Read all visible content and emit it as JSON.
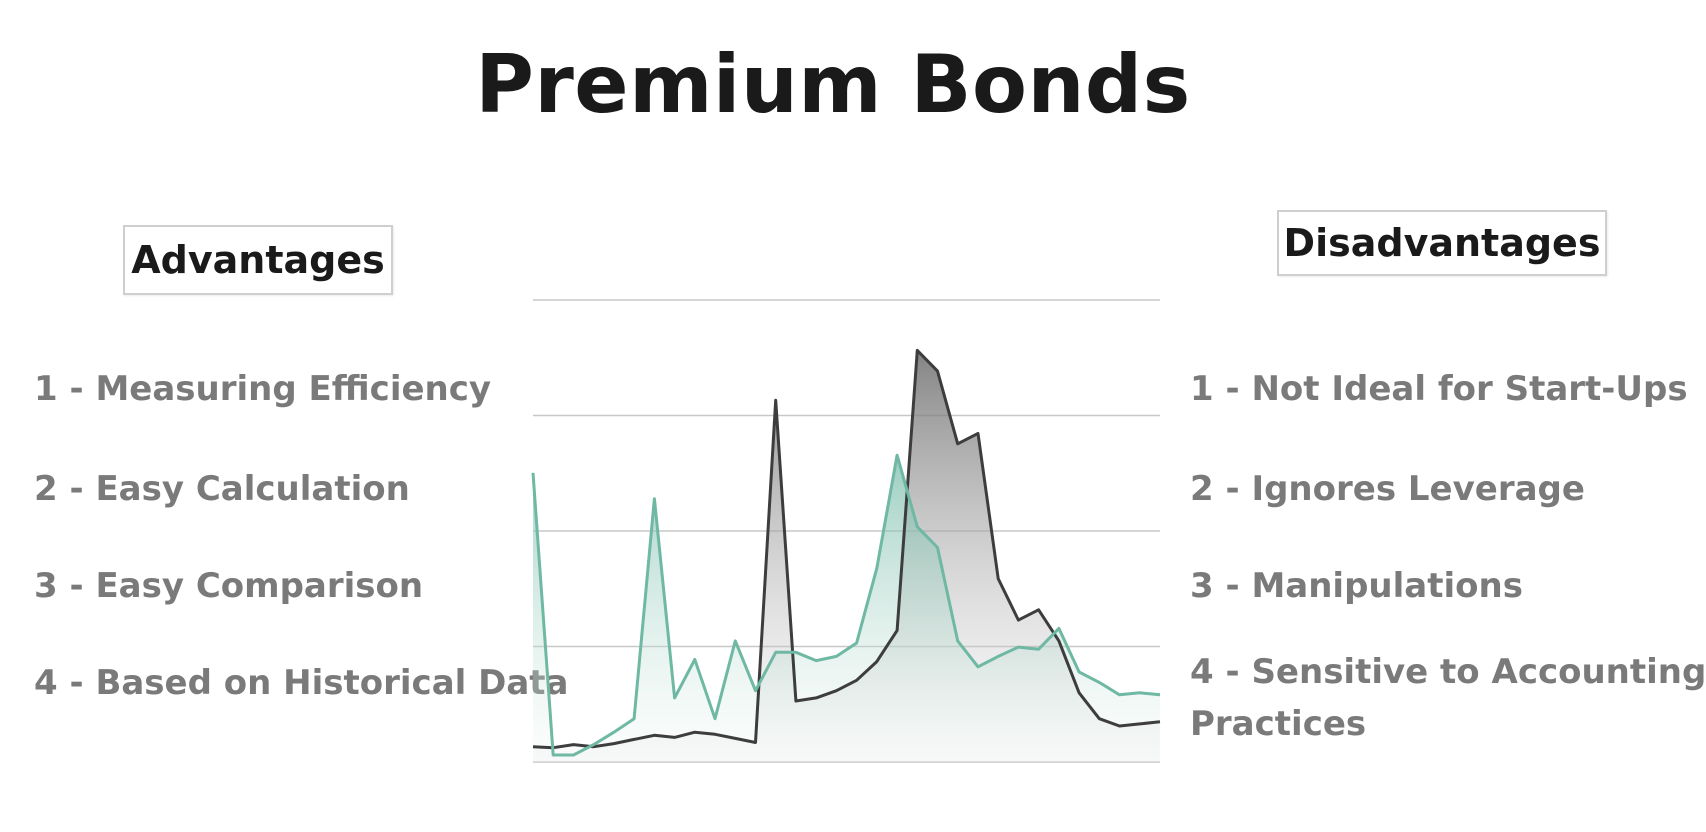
{
  "title": "Premium Bonds",
  "advantages": {
    "heading": "Advantages",
    "items": [
      "1 - Measuring Efficiency",
      "2 - Easy Calculation",
      "3 - Easy Comparison",
      "4 - Based on Historical Data"
    ]
  },
  "disadvantages": {
    "heading": "Disadvantages",
    "items": [
      "1 - Not Ideal for Start-Ups",
      "2 - Ignores Leverage",
      "3 - Manipulations",
      "4 - Sensitive to Accounting",
      "Practices"
    ]
  },
  "colors": {
    "dark_series": "#3d3d3d",
    "green_series": "#6fb8a3",
    "gridline": "#c8c8c8"
  },
  "graphic": {
    "dark_series": [
      8,
      7,
      10,
      8,
      11,
      15,
      19,
      17,
      22,
      20,
      16,
      12,
      342,
      52,
      55,
      62,
      72,
      90,
      120,
      390,
      370,
      300,
      310,
      170,
      130,
      140,
      110,
      60,
      35,
      28,
      30,
      32
    ],
    "green_series": [
      272,
      0,
      0,
      10,
      22,
      35,
      247,
      55,
      92,
      35,
      110,
      62,
      99,
      99,
      91,
      95,
      108,
      180,
      289,
      220,
      200,
      110,
      85,
      95,
      104,
      102,
      122,
      80,
      70,
      58,
      60,
      58
    ],
    "gridlines": 5
  }
}
